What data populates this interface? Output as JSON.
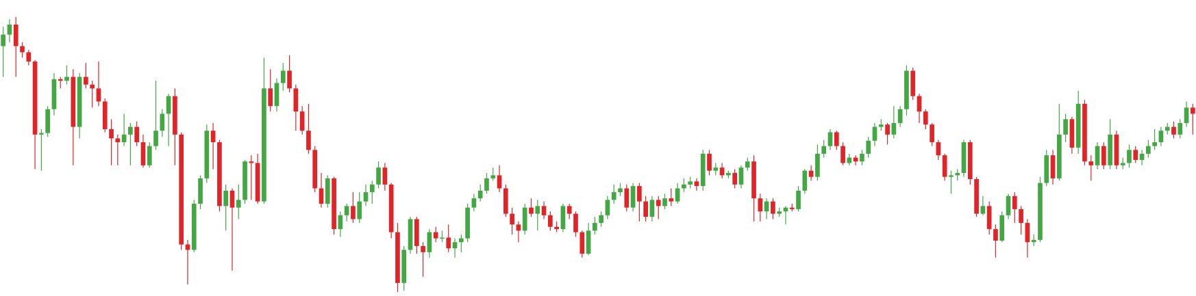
{
  "chart_data": {
    "type": "candlestick",
    "up_color": "#43a843",
    "down_color": "#e02428",
    "ylim": [
      15,
      400
    ],
    "ohlc": [
      [
        340,
        365,
        300,
        355
      ],
      [
        355,
        375,
        345,
        368
      ],
      [
        368,
        378,
        300,
        340
      ],
      [
        340,
        345,
        325,
        332
      ],
      [
        332,
        335,
        315,
        320
      ],
      [
        320,
        322,
        180,
        225
      ],
      [
        225,
        232,
        178,
        227
      ],
      [
        227,
        262,
        222,
        258
      ],
      [
        258,
        305,
        250,
        297
      ],
      [
        297,
        300,
        285,
        295
      ],
      [
        295,
        315,
        290,
        300
      ],
      [
        300,
        310,
        185,
        235
      ],
      [
        235,
        305,
        220,
        300
      ],
      [
        300,
        318,
        285,
        290
      ],
      [
        290,
        295,
        260,
        285
      ],
      [
        285,
        320,
        262,
        268
      ],
      [
        268,
        272,
        228,
        232
      ],
      [
        232,
        245,
        185,
        220
      ],
      [
        220,
        225,
        185,
        215
      ],
      [
        215,
        252,
        210,
        225
      ],
      [
        225,
        240,
        185,
        235
      ],
      [
        235,
        242,
        210,
        215
      ],
      [
        215,
        225,
        182,
        185
      ],
      [
        185,
        215,
        182,
        210
      ],
      [
        210,
        295,
        205,
        230
      ],
      [
        230,
        258,
        222,
        252
      ],
      [
        252,
        278,
        210,
        275
      ],
      [
        275,
        285,
        185,
        225
      ],
      [
        225,
        228,
        75,
        82
      ],
      [
        82,
        88,
        30,
        75
      ],
      [
        75,
        140,
        72,
        135
      ],
      [
        135,
        172,
        128,
        168
      ],
      [
        168,
        238,
        162,
        230
      ],
      [
        230,
        240,
        180,
        215
      ],
      [
        215,
        218,
        125,
        132
      ],
      [
        132,
        160,
        100,
        152
      ],
      [
        152,
        155,
        48,
        130
      ],
      [
        130,
        160,
        115,
        140
      ],
      [
        140,
        192,
        135,
        190
      ],
      [
        190,
        198,
        140,
        188
      ],
      [
        188,
        200,
        135,
        138
      ],
      [
        138,
        325,
        135,
        285
      ],
      [
        285,
        310,
        255,
        262
      ],
      [
        262,
        298,
        255,
        292
      ],
      [
        292,
        318,
        282,
        308
      ],
      [
        308,
        328,
        280,
        285
      ],
      [
        285,
        290,
        230,
        255
      ],
      [
        255,
        262,
        225,
        230
      ],
      [
        230,
        265,
        200,
        205
      ],
      [
        205,
        210,
        150,
        155
      ],
      [
        155,
        175,
        130,
        135
      ],
      [
        135,
        172,
        130,
        168
      ],
      [
        168,
        170,
        95,
        102
      ],
      [
        102,
        125,
        92,
        120
      ],
      [
        120,
        135,
        112,
        132
      ],
      [
        132,
        150,
        110,
        115
      ],
      [
        115,
        150,
        110,
        138
      ],
      [
        138,
        160,
        132,
        150
      ],
      [
        150,
        165,
        135,
        160
      ],
      [
        160,
        190,
        155,
        182
      ],
      [
        182,
        188,
        152,
        160
      ],
      [
        160,
        162,
        90,
        98
      ],
      [
        98,
        110,
        20,
        32
      ],
      [
        32,
        80,
        22,
        75
      ],
      [
        75,
        118,
        70,
        115
      ],
      [
        115,
        118,
        70,
        80
      ],
      [
        80,
        85,
        40,
        72
      ],
      [
        72,
        102,
        65,
        98
      ],
      [
        98,
        105,
        85,
        90
      ],
      [
        90,
        100,
        85,
        91
      ],
      [
        91,
        108,
        72,
        77
      ],
      [
        77,
        90,
        65,
        85
      ],
      [
        85,
        95,
        72,
        90
      ],
      [
        90,
        135,
        85,
        130
      ],
      [
        130,
        148,
        125,
        142
      ],
      [
        142,
        160,
        138,
        152
      ],
      [
        152,
        175,
        148,
        168
      ],
      [
        168,
        182,
        165,
        172
      ],
      [
        172,
        185,
        150,
        155
      ],
      [
        155,
        160,
        118,
        122
      ],
      [
        122,
        130,
        95,
        108
      ],
      [
        108,
        112,
        85,
        100
      ],
      [
        100,
        135,
        95,
        130
      ],
      [
        130,
        142,
        118,
        122
      ],
      [
        122,
        140,
        100,
        132
      ],
      [
        132,
        138,
        115,
        120
      ],
      [
        120,
        125,
        100,
        105
      ],
      [
        105,
        112,
        98,
        102
      ],
      [
        102,
        135,
        98,
        132
      ],
      [
        132,
        135,
        115,
        122
      ],
      [
        122,
        125,
        92,
        98
      ],
      [
        98,
        100,
        65,
        70
      ],
      [
        70,
        110,
        68,
        100
      ],
      [
        100,
        118,
        95,
        110
      ],
      [
        110,
        125,
        105,
        120
      ],
      [
        120,
        145,
        115,
        140
      ],
      [
        140,
        160,
        135,
        150
      ],
      [
        150,
        162,
        145,
        155
      ],
      [
        155,
        160,
        125,
        130
      ],
      [
        130,
        162,
        125,
        158
      ],
      [
        158,
        162,
        112,
        138
      ],
      [
        138,
        145,
        112,
        118
      ],
      [
        118,
        145,
        112,
        140
      ],
      [
        140,
        145,
        115,
        132
      ],
      [
        132,
        148,
        128,
        142
      ],
      [
        142,
        155,
        132,
        138
      ],
      [
        138,
        162,
        135,
        155
      ],
      [
        155,
        168,
        150,
        160
      ],
      [
        160,
        170,
        155,
        164
      ],
      [
        164,
        168,
        152,
        158
      ],
      [
        158,
        205,
        152,
        200
      ],
      [
        200,
        205,
        172,
        178
      ],
      [
        178,
        188,
        172,
        182
      ],
      [
        182,
        188,
        168,
        172
      ],
      [
        172,
        178,
        168,
        175
      ],
      [
        175,
        180,
        155,
        160
      ],
      [
        160,
        185,
        155,
        182
      ],
      [
        182,
        195,
        178,
        190
      ],
      [
        190,
        198,
        112,
        142
      ],
      [
        142,
        148,
        112,
        125
      ],
      [
        125,
        142,
        115,
        138
      ],
      [
        138,
        142,
        115,
        122
      ],
      [
        122,
        130,
        118,
        125
      ],
      [
        125,
        132,
        108,
        130
      ],
      [
        130,
        135,
        125,
        128
      ],
      [
        128,
        158,
        125,
        152
      ],
      [
        152,
        180,
        148,
        178
      ],
      [
        178,
        185,
        165,
        170
      ],
      [
        170,
        212,
        165,
        200
      ],
      [
        200,
        218,
        195,
        210
      ],
      [
        210,
        232,
        205,
        228
      ],
      [
        228,
        230,
        205,
        210
      ],
      [
        210,
        215,
        185,
        188
      ],
      [
        188,
        200,
        185,
        195
      ],
      [
        195,
        198,
        185,
        190
      ],
      [
        190,
        205,
        185,
        200
      ],
      [
        200,
        222,
        195,
        217
      ],
      [
        217,
        240,
        210,
        235
      ],
      [
        235,
        245,
        230,
        238
      ],
      [
        238,
        240,
        212,
        225
      ],
      [
        225,
        262,
        220,
        240
      ],
      [
        240,
        262,
        235,
        258
      ],
      [
        258,
        315,
        250,
        308
      ],
      [
        308,
        312,
        270,
        275
      ],
      [
        275,
        278,
        240,
        255
      ],
      [
        255,
        258,
        232,
        238
      ],
      [
        238,
        240,
        210,
        215
      ],
      [
        215,
        218,
        192,
        198
      ],
      [
        198,
        200,
        165,
        170
      ],
      [
        170,
        178,
        148,
        172
      ],
      [
        172,
        180,
        165,
        175
      ],
      [
        175,
        218,
        170,
        215
      ],
      [
        215,
        218,
        160,
        167
      ],
      [
        167,
        170,
        118,
        122
      ],
      [
        122,
        145,
        120,
        132
      ],
      [
        132,
        138,
        95,
        102
      ],
      [
        102,
        108,
        65,
        87
      ],
      [
        87,
        125,
        85,
        120
      ],
      [
        120,
        148,
        115,
        145
      ],
      [
        145,
        150,
        110,
        128
      ],
      [
        128,
        132,
        95,
        110
      ],
      [
        110,
        115,
        65,
        85
      ],
      [
        85,
        95,
        80,
        88
      ],
      [
        88,
        170,
        85,
        162
      ],
      [
        162,
        205,
        158,
        198
      ],
      [
        198,
        205,
        160,
        168
      ],
      [
        168,
        265,
        165,
        225
      ],
      [
        225,
        252,
        215,
        245
      ],
      [
        245,
        248,
        200,
        208
      ],
      [
        208,
        282,
        200,
        265
      ],
      [
        265,
        270,
        185,
        190
      ],
      [
        190,
        198,
        165,
        185
      ],
      [
        185,
        215,
        180,
        210
      ],
      [
        210,
        215,
        180,
        185
      ],
      [
        185,
        245,
        180,
        225
      ],
      [
        225,
        230,
        180,
        185
      ],
      [
        185,
        195,
        180,
        188
      ],
      [
        188,
        212,
        182,
        205
      ],
      [
        205,
        210,
        188,
        192
      ],
      [
        192,
        205,
        185,
        200
      ],
      [
        200,
        218,
        195,
        210
      ],
      [
        210,
        232,
        205,
        215
      ],
      [
        215,
        235,
        210,
        230
      ],
      [
        230,
        240,
        225,
        235
      ],
      [
        235,
        242,
        220,
        225
      ],
      [
        225,
        245,
        220,
        240
      ],
      [
        240,
        268,
        235,
        260
      ],
      [
        260,
        265,
        225,
        252
      ]
    ]
  }
}
